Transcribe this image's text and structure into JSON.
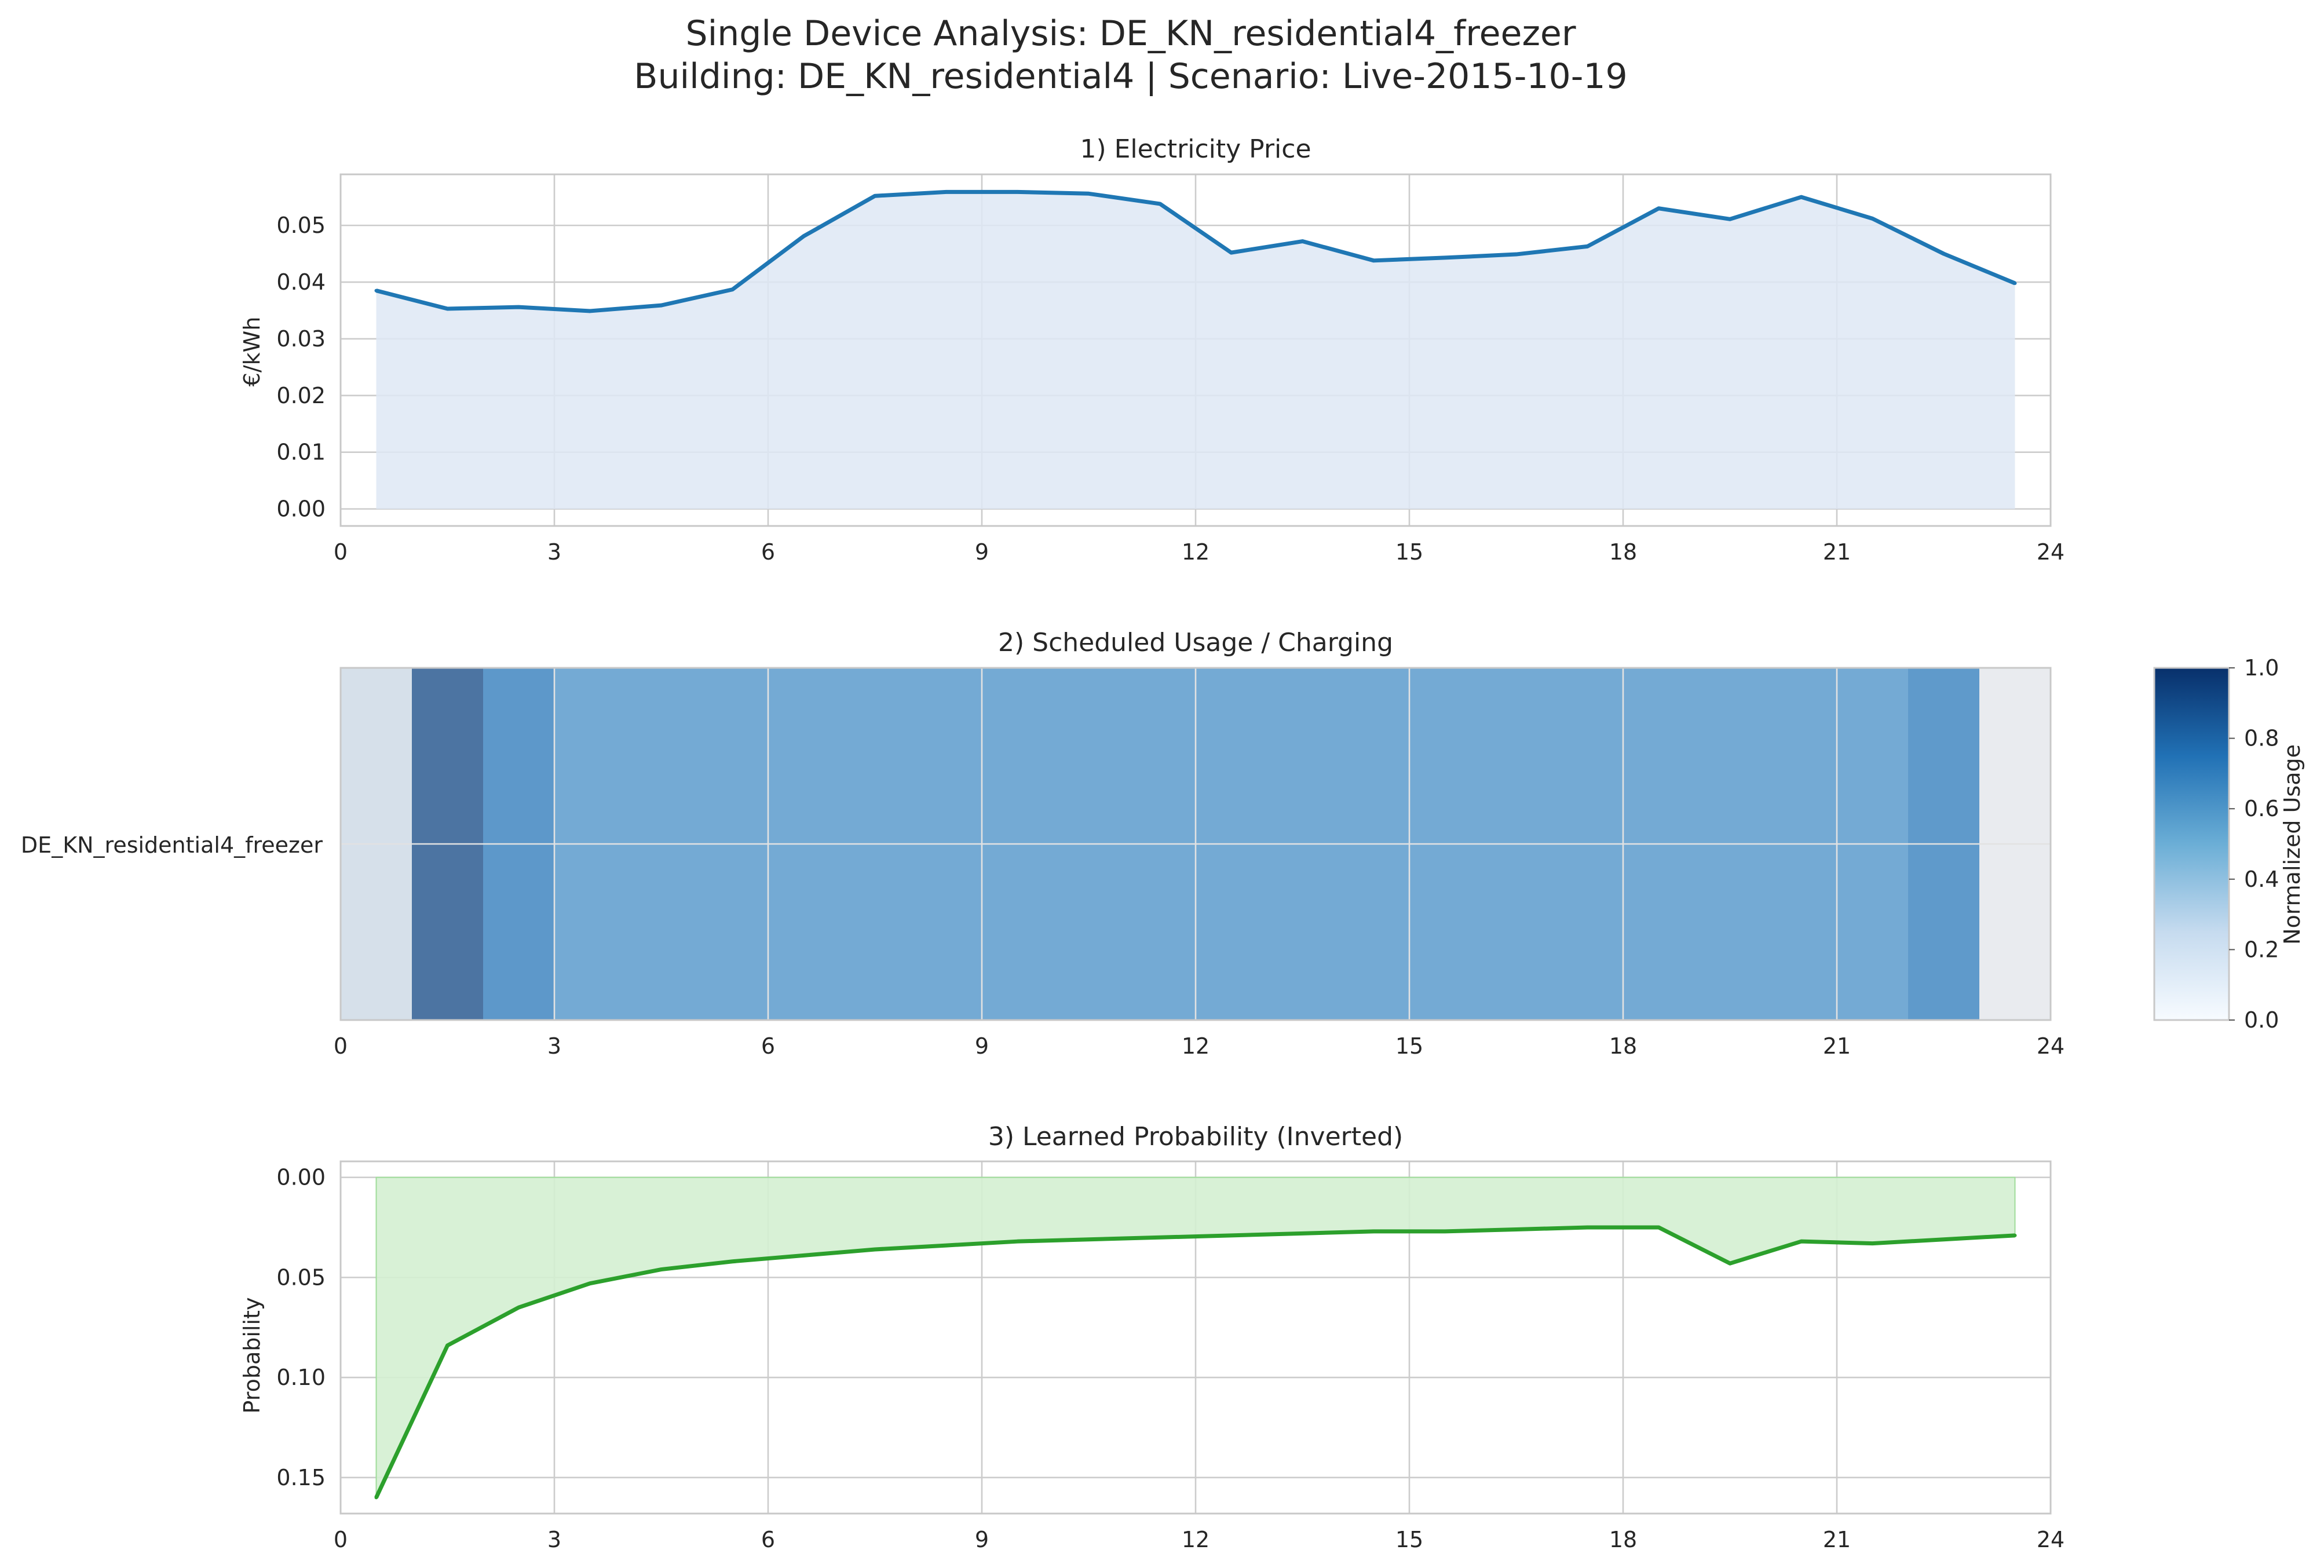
{
  "figure": {
    "title_line1": "Single Device Analysis: DE_KN_residential4_freezer",
    "title_line2": "Building: DE_KN_residential4 | Scenario: Live-2015-10-19"
  },
  "colors": {
    "price_line": "#1f77b4",
    "price_fill": "#dee8f4",
    "prob_line": "#2ca02c",
    "prob_fill": "#d4f0d2",
    "grid": "#cccccc",
    "spine": "#c8c8c8",
    "heat_empty_start": "#d6e0ea",
    "heat_empty_end": "#e9ebef"
  },
  "chart_data": [
    {
      "type": "area",
      "title": "1) Electricity Price",
      "xlabel": "",
      "ylabel": "€/kWh",
      "xlim": [
        0,
        24
      ],
      "ylim": [
        -0.003,
        0.059
      ],
      "xticks": [
        0,
        3,
        6,
        9,
        12,
        15,
        18,
        21,
        24
      ],
      "yticks": [
        0.0,
        0.01,
        0.02,
        0.03,
        0.04,
        0.05
      ],
      "ytick_labels": [
        "0.00",
        "0.01",
        "0.02",
        "0.03",
        "0.04",
        "0.05"
      ],
      "grid": true,
      "series": [
        {
          "x": [
            0.5,
            1.5,
            2.5,
            3.5,
            4.5,
            5.5,
            6.5,
            7.5,
            8.5,
            9.5,
            10.5,
            11.5,
            12.5,
            13.5,
            14.5,
            15.5,
            16.5,
            17.5,
            18.5,
            19.5,
            20.5,
            21.5,
            22.5,
            23.5
          ],
          "values": [
            0.0385,
            0.0353,
            0.0356,
            0.0349,
            0.0359,
            0.0387,
            0.0481,
            0.0552,
            0.0559,
            0.0559,
            0.0556,
            0.0538,
            0.0452,
            0.0472,
            0.0438,
            0.0443,
            0.0449,
            0.0463,
            0.053,
            0.0511,
            0.055,
            0.0512,
            0.045,
            0.0398
          ]
        }
      ]
    },
    {
      "type": "heatmap",
      "title": "2) Scheduled Usage / Charging",
      "row_labels": [
        "DE_KN_residential4_freezer"
      ],
      "xlim": [
        0,
        24
      ],
      "xticks": [
        0,
        3,
        6,
        9,
        12,
        15,
        18,
        21,
        24
      ],
      "grid": true,
      "cells": [
        {
          "start": 1,
          "end": 2,
          "value": 0.92
        },
        {
          "start": 2,
          "end": 3,
          "value": 0.73
        },
        {
          "start": 3,
          "end": 22,
          "value": 0.63
        },
        {
          "start": 22,
          "end": 23,
          "value": 0.72
        }
      ],
      "colorbar": {
        "label": "Normalized Usage",
        "range": [
          0.0,
          1.0
        ],
        "ticks": [
          0.0,
          0.2,
          0.4,
          0.6,
          0.8,
          1.0
        ],
        "tick_labels": [
          "0.0",
          "0.2",
          "0.4",
          "0.6",
          "0.8",
          "1.0"
        ],
        "colormap": "Blues"
      }
    },
    {
      "type": "area",
      "title": "3) Learned Probability (Inverted)",
      "xlabel": "",
      "ylabel": "Probability",
      "xlim": [
        0,
        24
      ],
      "ylim": [
        0.168,
        -0.008
      ],
      "inverted_y": true,
      "xticks": [
        0,
        3,
        6,
        9,
        12,
        15,
        18,
        21,
        24
      ],
      "yticks": [
        0.0,
        0.05,
        0.1,
        0.15
      ],
      "ytick_labels": [
        "0.00",
        "0.05",
        "0.10",
        "0.15"
      ],
      "grid": true,
      "series": [
        {
          "x": [
            0.5,
            1.5,
            2.5,
            3.5,
            4.5,
            5.5,
            6.5,
            7.5,
            8.5,
            9.5,
            10.5,
            11.5,
            12.5,
            13.5,
            14.5,
            15.5,
            16.5,
            17.5,
            18.5,
            19.5,
            20.5,
            21.5,
            22.5,
            23.5
          ],
          "values": [
            0.16,
            0.084,
            0.065,
            0.053,
            0.046,
            0.042,
            0.039,
            0.036,
            0.034,
            0.032,
            0.031,
            0.03,
            0.029,
            0.028,
            0.027,
            0.027,
            0.026,
            0.025,
            0.025,
            0.043,
            0.032,
            0.033,
            0.031,
            0.029
          ]
        }
      ]
    }
  ]
}
